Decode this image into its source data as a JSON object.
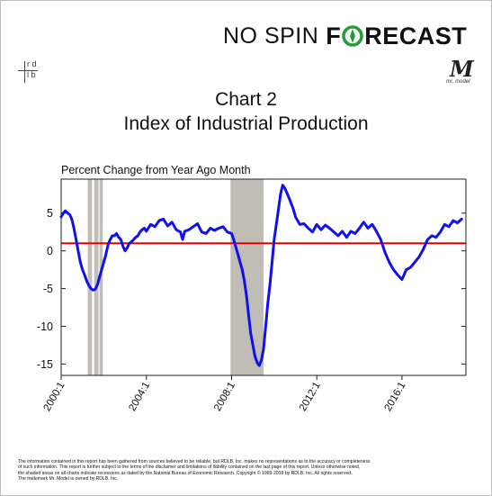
{
  "brand": {
    "part1": "NO SPIN",
    "part2_prefix": "F",
    "part2_suffix": "RECAST"
  },
  "logo_rdlb": {
    "top": "r d",
    "bottom": "l b"
  },
  "logo_mrmodel": {
    "letter": "M",
    "caption": "mr. model"
  },
  "title_line1": "Chart 2",
  "title_line2": "Index of Industrial Production",
  "subtitle": "Percent Change from Year Ago Month",
  "colors": {
    "series": "#1010ee",
    "zero_line": "#ee0000",
    "recession": "#bfbdb6",
    "brand_green": "#2a9a3a"
  },
  "chart_data": {
    "type": "line",
    "title": "Index of Industrial Production",
    "ylabel": "Percent Change from Year Ago Month",
    "xlim": [
      2000.0,
      2019.0
    ],
    "ylim": [
      -16.5,
      9.5
    ],
    "yticks": [
      5,
      0,
      -5,
      -10,
      -15
    ],
    "ytick_labels": [
      "5",
      "0",
      "-5",
      "-10",
      "-15"
    ],
    "xticks": [
      2000,
      2004,
      2008,
      2012,
      2016
    ],
    "xtick_labels": [
      "2000:1",
      "2004:1",
      "2008:1",
      "2012:1",
      "2016:1"
    ],
    "reference_line": {
      "y": 1,
      "color": "#ee0000"
    },
    "recessions": [
      [
        2001.25,
        2001.45
      ],
      [
        2001.55,
        2001.75
      ],
      [
        2001.8,
        2001.95
      ],
      [
        2007.95,
        2009.5
      ]
    ],
    "grid": false,
    "series": [
      {
        "x": [
          2000.0,
          2000.1,
          2000.2,
          2000.3,
          2000.4,
          2000.5,
          2000.6,
          2000.7,
          2000.8,
          2000.9,
          2001.0,
          2001.1,
          2001.2,
          2001.3,
          2001.4,
          2001.5,
          2001.6,
          2001.7,
          2001.8,
          2001.9,
          2002.0,
          2002.1,
          2002.2,
          2002.3,
          2002.4,
          2002.5,
          2002.6,
          2002.7,
          2002.8,
          2002.9,
          2003.0,
          2003.1,
          2003.2,
          2003.3,
          2003.4,
          2003.5,
          2003.6,
          2003.7,
          2003.8,
          2003.9,
          2004.0,
          2004.2,
          2004.4,
          2004.6,
          2004.8,
          2005.0,
          2005.2,
          2005.4,
          2005.6,
          2005.7,
          2005.8,
          2006.0,
          2006.2,
          2006.4,
          2006.6,
          2006.8,
          2007.0,
          2007.2,
          2007.4,
          2007.6,
          2007.8,
          2008.0,
          2008.1,
          2008.2,
          2008.3,
          2008.4,
          2008.5,
          2008.6,
          2008.7,
          2008.8,
          2008.9,
          2009.0,
          2009.1,
          2009.2,
          2009.3,
          2009.4,
          2009.5,
          2009.6,
          2009.7,
          2009.8,
          2009.9,
          2010.0,
          2010.1,
          2010.2,
          2010.3,
          2010.4,
          2010.5,
          2010.7,
          2010.9,
          2011.0,
          2011.2,
          2011.4,
          2011.6,
          2011.8,
          2012.0,
          2012.2,
          2012.4,
          2012.6,
          2012.8,
          2013.0,
          2013.2,
          2013.4,
          2013.6,
          2013.8,
          2014.0,
          2014.2,
          2014.4,
          2014.6,
          2014.8,
          2015.0,
          2015.2,
          2015.4,
          2015.6,
          2015.8,
          2016.0,
          2016.2,
          2016.4,
          2016.6,
          2016.8,
          2017.0,
          2017.2,
          2017.4,
          2017.6,
          2017.8,
          2018.0,
          2018.2,
          2018.4,
          2018.6,
          2018.8
        ],
        "y": [
          4.5,
          5.0,
          5.3,
          5.0,
          4.8,
          4.2,
          3.0,
          1.5,
          0.0,
          -1.5,
          -2.5,
          -3.2,
          -4.0,
          -4.6,
          -5.0,
          -5.2,
          -5.1,
          -4.5,
          -3.5,
          -2.5,
          -1.5,
          -0.5,
          0.8,
          1.5,
          2.0,
          2.0,
          2.3,
          1.8,
          1.5,
          0.6,
          0.0,
          0.4,
          1.0,
          1.2,
          1.5,
          1.8,
          2.0,
          2.5,
          2.8,
          3.0,
          2.6,
          3.5,
          3.2,
          4.0,
          4.2,
          3.3,
          3.8,
          2.8,
          2.5,
          1.5,
          2.6,
          2.8,
          3.2,
          3.6,
          2.5,
          2.3,
          3.0,
          2.7,
          3.0,
          3.2,
          2.5,
          2.3,
          1.5,
          0.5,
          -0.5,
          -1.5,
          -2.5,
          -4.0,
          -6.0,
          -8.5,
          -11.0,
          -12.5,
          -14.0,
          -14.8,
          -15.2,
          -14.5,
          -13.0,
          -10.0,
          -7.0,
          -4.5,
          -1.5,
          1.5,
          3.5,
          5.5,
          7.5,
          8.7,
          8.3,
          7.0,
          5.5,
          4.5,
          3.5,
          3.6,
          3.0,
          2.5,
          3.5,
          2.8,
          3.4,
          3.0,
          2.5,
          2.0,
          2.6,
          1.8,
          2.6,
          2.3,
          3.0,
          3.8,
          3.0,
          3.5,
          2.6,
          1.5,
          -0.2,
          -1.5,
          -2.5,
          -3.2,
          -3.8,
          -2.5,
          -2.2,
          -1.5,
          -0.8,
          0.2,
          1.5,
          2.0,
          1.8,
          2.5,
          3.5,
          3.2,
          4.0,
          3.7,
          4.2
        ]
      }
    ]
  },
  "footer_lines": [
    "The information contained in this report has been gathered from sources believed to be reliable, but RDLB, Inc. makes no representations as to the accuracy or completeness",
    "of such information. This report is further subject to the terms of the disclaimer and limitations of liability contained on the last page of this report. Unless otherwise noted,",
    "the shaded areas on all charts indicate recessions as dated by the National Bureau of Economic Research. Copyright © 1989-2018 by RDLB, Inc. All rights reserved.",
    "The trademark Mr. Model is owned by RDLB, Inc."
  ]
}
